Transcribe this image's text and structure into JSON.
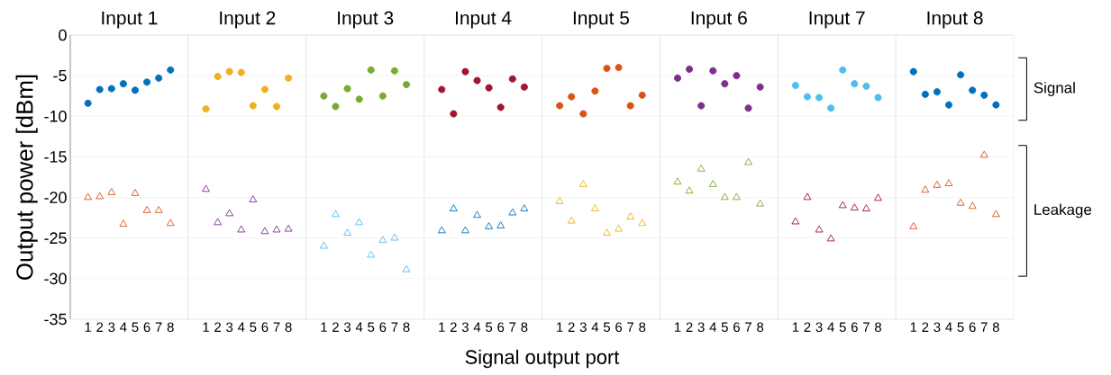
{
  "chart_data": [
    {
      "type": "scatter",
      "title": "Input 1",
      "ylabel": "Output power [dBm]",
      "categories": [
        "1",
        "2",
        "3",
        "4",
        "5",
        "6",
        "7",
        "8"
      ],
      "ylim": [
        -35,
        0
      ],
      "yticks": [
        -35,
        -30,
        -25,
        -20,
        -15,
        -10,
        -5,
        0
      ],
      "grid": "y",
      "series": [
        {
          "color": "#0072bd",
          "marker": "circle",
          "values": [
            -8.4,
            -6.7,
            -6.6,
            -6.0,
            -6.8,
            -5.8,
            -5.3,
            -4.3
          ]
        },
        {
          "color": "#d95319",
          "marker": "triangle",
          "values": [
            -20.0,
            -19.9,
            -19.4,
            -23.3,
            -19.5,
            -21.6,
            -21.6,
            -23.2
          ]
        }
      ]
    },
    {
      "type": "scatter",
      "title": "Input 2",
      "categories": [
        "1",
        "2",
        "3",
        "4",
        "5",
        "6",
        "7",
        "8"
      ],
      "ylim": [
        -35,
        0
      ],
      "yticks": [
        -35,
        -30,
        -25,
        -20,
        -15,
        -10,
        -5,
        0
      ],
      "grid": "y",
      "tick_labels": "x",
      "series": [
        {
          "color": "#edb120",
          "marker": "circle",
          "values": [
            -9.1,
            -5.1,
            -4.5,
            -4.6,
            -8.7,
            -6.7,
            -8.8,
            -5.3
          ]
        },
        {
          "color": "#7e2f8e",
          "marker": "triangle",
          "values": [
            -19.0,
            -23.1,
            -22.0,
            -24.0,
            -20.3,
            -24.2,
            -24.0,
            -23.9
          ]
        }
      ]
    },
    {
      "type": "scatter",
      "title": "Input 3",
      "categories": [
        "1",
        "2",
        "3",
        "4",
        "5",
        "6",
        "7",
        "8"
      ],
      "ylim": [
        -35,
        0
      ],
      "yticks": [
        -35,
        -30,
        -25,
        -20,
        -15,
        -10,
        -5,
        0
      ],
      "grid": "y",
      "tick_labels": "x",
      "series": [
        {
          "color": "#77ac30",
          "marker": "circle",
          "values": [
            -7.5,
            -8.8,
            -6.6,
            -7.9,
            -4.3,
            -7.5,
            -4.4,
            -6.1
          ]
        },
        {
          "color": "#4dbeee",
          "marker": "triangle",
          "values": [
            -26.0,
            -22.1,
            -24.4,
            -23.1,
            -27.1,
            -25.3,
            -25.0,
            -28.9
          ]
        }
      ]
    },
    {
      "type": "scatter",
      "title": "Input 4",
      "xlabel": "Signal output port",
      "categories": [
        "1",
        "2",
        "3",
        "4",
        "5",
        "6",
        "7",
        "8"
      ],
      "ylim": [
        -35,
        0
      ],
      "yticks": [
        -35,
        -30,
        -25,
        -20,
        -15,
        -10,
        -5,
        0
      ],
      "grid": "y",
      "tick_labels": "x",
      "series": [
        {
          "color": "#a2142f",
          "marker": "circle",
          "values": [
            -6.7,
            -9.7,
            -4.5,
            -5.6,
            -6.5,
            -8.9,
            -5.4,
            -6.4
          ]
        },
        {
          "color": "#0072bd",
          "marker": "triangle",
          "values": [
            -24.1,
            -21.4,
            -24.1,
            -22.2,
            -23.6,
            -23.5,
            -21.9,
            -21.4
          ]
        }
      ]
    },
    {
      "type": "scatter",
      "title": "Input 5",
      "categories": [
        "1",
        "2",
        "3",
        "4",
        "5",
        "6",
        "7",
        "8"
      ],
      "ylim": [
        -35,
        0
      ],
      "yticks": [
        -35,
        -30,
        -25,
        -20,
        -15,
        -10,
        -5,
        0
      ],
      "grid": "y",
      "tick_labels": "x",
      "series": [
        {
          "color": "#d95319",
          "marker": "circle",
          "values": [
            -8.7,
            -7.6,
            -9.7,
            -6.9,
            -4.1,
            -4.0,
            -8.7,
            -7.4
          ]
        },
        {
          "color": "#edb120",
          "marker": "triangle",
          "values": [
            -20.5,
            -22.9,
            -18.4,
            -21.4,
            -24.4,
            -23.9,
            -22.4,
            -23.2
          ]
        }
      ]
    },
    {
      "type": "scatter",
      "title": "Input 6",
      "categories": [
        "1",
        "2",
        "3",
        "4",
        "5",
        "6",
        "7",
        "8"
      ],
      "ylim": [
        -35,
        0
      ],
      "yticks": [
        -35,
        -30,
        -25,
        -20,
        -15,
        -10,
        -5,
        0
      ],
      "grid": "y",
      "tick_labels": "x",
      "series": [
        {
          "color": "#7e2f8e",
          "marker": "circle",
          "values": [
            -5.3,
            -4.2,
            -8.7,
            -4.4,
            -6.0,
            -5.0,
            -9.0,
            -6.4
          ]
        },
        {
          "color": "#77ac30",
          "marker": "triangle",
          "values": [
            -18.1,
            -19.2,
            -16.5,
            -18.4,
            -20.0,
            -20.0,
            -15.7,
            -20.8
          ]
        }
      ]
    },
    {
      "type": "scatter",
      "title": "Input 7",
      "categories": [
        "1",
        "2",
        "3",
        "4",
        "5",
        "6",
        "7",
        "8"
      ],
      "ylim": [
        -35,
        0
      ],
      "yticks": [
        -35,
        -30,
        -25,
        -20,
        -15,
        -10,
        -5,
        0
      ],
      "grid": "y",
      "tick_labels": "x",
      "series": [
        {
          "color": "#4dbeee",
          "marker": "circle",
          "values": [
            -6.2,
            -7.6,
            -7.7,
            -9.0,
            -4.3,
            -6.0,
            -6.3,
            -7.7
          ]
        },
        {
          "color": "#a2142f",
          "marker": "triangle",
          "values": [
            -23.0,
            -20.0,
            -24.0,
            -25.1,
            -21.0,
            -21.3,
            -21.4,
            -20.1
          ]
        }
      ]
    },
    {
      "type": "scatter",
      "title": "Input 8",
      "categories": [
        "1",
        "2",
        "3",
        "4",
        "5",
        "6",
        "7",
        "8"
      ],
      "ylim": [
        -35,
        0
      ],
      "yticks": [
        -35,
        -30,
        -25,
        -20,
        -15,
        -10,
        -5,
        0
      ],
      "grid": "y",
      "tick_labels": "x",
      "annotations": [
        "Signal",
        "Leakage"
      ],
      "series": [
        {
          "color": "#0072bd",
          "marker": "circle",
          "values": [
            -4.5,
            -7.3,
            -7.0,
            -8.6,
            -4.9,
            -6.8,
            -7.4,
            -8.6
          ]
        },
        {
          "color": "#d95319",
          "marker": "triangle",
          "values": [
            -23.6,
            -19.1,
            -18.5,
            -18.3,
            -20.7,
            -21.1,
            -14.8,
            -22.1
          ]
        }
      ]
    }
  ]
}
